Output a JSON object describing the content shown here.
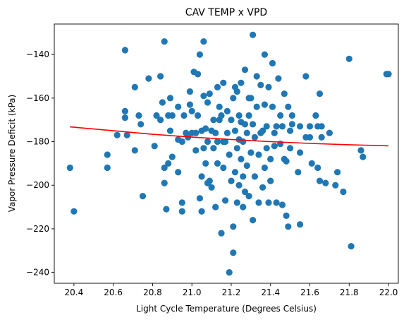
{
  "chart_data": {
    "type": "scatter",
    "title": "CAV TEMP x VPD",
    "xlabel": "Light Cycle Temperature (Degrees Celsius)",
    "ylabel": "Vapor Pressure Deficit (kPa)",
    "xlim": [
      20.3,
      22.05
    ],
    "ylim": [
      -245,
      -126
    ],
    "xticks": [
      "20.4",
      "20.6",
      "20.8",
      "21.0",
      "21.2",
      "21.4",
      "21.6",
      "21.8",
      "22.0"
    ],
    "yticks": [
      "−240",
      "−220",
      "−200",
      "−180",
      "−160",
      "−140"
    ],
    "grid": false,
    "legend": "none",
    "colors": {
      "points": "#1f77b4",
      "trend": "#ff0000"
    },
    "series": [
      {
        "kind": "points",
        "points": [
          [
            20.38,
            -192
          ],
          [
            20.4,
            -212
          ],
          [
            20.57,
            -186
          ],
          [
            20.57,
            -192
          ],
          [
            20.62,
            -177
          ],
          [
            20.66,
            -138
          ],
          [
            20.66,
            -166
          ],
          [
            20.66,
            -169
          ],
          [
            20.67,
            -177
          ],
          [
            20.71,
            -155
          ],
          [
            20.71,
            -184
          ],
          [
            20.73,
            -168
          ],
          [
            20.74,
            -172
          ],
          [
            20.75,
            -205
          ],
          [
            20.78,
            -151
          ],
          [
            20.81,
            -182
          ],
          [
            20.82,
            -168
          ],
          [
            20.84,
            -150
          ],
          [
            20.84,
            -170
          ],
          [
            20.85,
            -162
          ],
          [
            20.86,
            -134
          ],
          [
            20.86,
            -192
          ],
          [
            20.86,
            -199
          ],
          [
            20.87,
            -211
          ],
          [
            20.88,
            -190
          ],
          [
            20.88,
            -168
          ],
          [
            20.89,
            -160
          ],
          [
            20.89,
            -175
          ],
          [
            20.9,
            -187
          ],
          [
            20.9,
            -168
          ],
          [
            20.93,
            -164
          ],
          [
            20.93,
            -179
          ],
          [
            20.93,
            -194
          ],
          [
            20.95,
            -180
          ],
          [
            20.95,
            -208
          ],
          [
            20.95,
            -212
          ],
          [
            20.96,
            -168
          ],
          [
            20.97,
            -176
          ],
          [
            20.98,
            -178
          ],
          [
            20.99,
            -157
          ],
          [
            20.99,
            -163
          ],
          [
            21.0,
            -176
          ],
          [
            21.0,
            -166
          ],
          [
            21.01,
            -148
          ],
          [
            21.02,
            -184
          ],
          [
            21.02,
            -176
          ],
          [
            21.03,
            -168
          ],
          [
            21.03,
            -149
          ],
          [
            21.04,
            -206
          ],
          [
            21.04,
            -140
          ],
          [
            21.05,
            -175
          ],
          [
            21.05,
            -196
          ],
          [
            21.05,
            -212
          ],
          [
            21.06,
            -134
          ],
          [
            21.06,
            -159
          ],
          [
            21.06,
            -183
          ],
          [
            21.07,
            -174
          ],
          [
            21.07,
            -190
          ],
          [
            21.08,
            -162
          ],
          [
            21.08,
            -180
          ],
          [
            21.08,
            -199
          ],
          [
            21.09,
            -158
          ],
          [
            21.09,
            -198
          ],
          [
            21.1,
            -175
          ],
          [
            21.1,
            -201
          ],
          [
            21.11,
            -170
          ],
          [
            21.11,
            -183
          ],
          [
            21.12,
            -176
          ],
          [
            21.12,
            -210
          ],
          [
            21.13,
            -155
          ],
          [
            21.13,
            -180
          ],
          [
            21.13,
            -190
          ],
          [
            21.14,
            -164
          ],
          [
            21.14,
            -170
          ],
          [
            21.15,
            -222
          ],
          [
            21.15,
            -168
          ],
          [
            21.16,
            -180
          ],
          [
            21.16,
            -192
          ],
          [
            21.16,
            -153
          ],
          [
            21.17,
            -180
          ],
          [
            21.17,
            -207
          ],
          [
            21.18,
            -176
          ],
          [
            21.18,
            -166
          ],
          [
            21.19,
            -240
          ],
          [
            21.19,
            -186
          ],
          [
            21.2,
            -198
          ],
          [
            21.2,
            -170
          ],
          [
            21.21,
            -231
          ],
          [
            21.21,
            -219
          ],
          [
            21.21,
            -160
          ],
          [
            21.22,
            -194
          ],
          [
            21.22,
            -175
          ],
          [
            21.22,
            -155
          ],
          [
            21.23,
            -208
          ],
          [
            21.23,
            -183
          ],
          [
            21.23,
            -157
          ],
          [
            21.24,
            -200
          ],
          [
            21.24,
            -179
          ],
          [
            21.24,
            -168
          ],
          [
            21.25,
            -188
          ],
          [
            21.25,
            -171
          ],
          [
            21.25,
            -153
          ],
          [
            21.26,
            -210
          ],
          [
            21.26,
            -196
          ],
          [
            21.26,
            -180
          ],
          [
            21.27,
            -203
          ],
          [
            21.27,
            -172
          ],
          [
            21.27,
            -147
          ],
          [
            21.28,
            -191
          ],
          [
            21.28,
            -176
          ],
          [
            21.29,
            -160
          ],
          [
            21.29,
            -205
          ],
          [
            21.29,
            -168
          ],
          [
            21.3,
            -185
          ],
          [
            21.3,
            -160
          ],
          [
            21.31,
            -131
          ],
          [
            21.31,
            -216
          ],
          [
            21.31,
            -172
          ],
          [
            21.32,
            -196
          ],
          [
            21.32,
            -178
          ],
          [
            21.33,
            -150
          ],
          [
            21.33,
            -164
          ],
          [
            21.34,
            -208
          ],
          [
            21.34,
            -186
          ],
          [
            21.35,
            -176
          ],
          [
            21.35,
            -154
          ],
          [
            21.36,
            -201
          ],
          [
            21.36,
            -175
          ],
          [
            21.37,
            -192
          ],
          [
            21.37,
            -140
          ],
          [
            21.37,
            -163
          ],
          [
            21.38,
            -183
          ],
          [
            21.38,
            -173
          ],
          [
            21.39,
            -208
          ],
          [
            21.39,
            -155
          ],
          [
            21.4,
            -188
          ],
          [
            21.4,
            -198
          ],
          [
            21.41,
            -144
          ],
          [
            21.41,
            -164
          ],
          [
            21.42,
            -176
          ],
          [
            21.42,
            -182
          ],
          [
            21.43,
            -173
          ],
          [
            21.43,
            -208
          ],
          [
            21.44,
            -151
          ],
          [
            21.45,
            -168
          ],
          [
            21.45,
            -181
          ],
          [
            21.46,
            -209
          ],
          [
            21.46,
            -173
          ],
          [
            21.47,
            -158
          ],
          [
            21.47,
            -188
          ],
          [
            21.48,
            -189
          ],
          [
            21.48,
            -214
          ],
          [
            21.49,
            -164
          ],
          [
            21.49,
            -219
          ],
          [
            21.5,
            -175
          ],
          [
            21.5,
            -183
          ],
          [
            21.51,
            -168
          ],
          [
            21.51,
            -172
          ],
          [
            21.54,
            -194
          ],
          [
            21.55,
            -185
          ],
          [
            21.55,
            -218
          ],
          [
            21.55,
            -173
          ],
          [
            21.58,
            -150
          ],
          [
            21.58,
            -178
          ],
          [
            21.6,
            -173
          ],
          [
            21.6,
            -178
          ],
          [
            21.61,
            -190
          ],
          [
            21.63,
            -168
          ],
          [
            21.64,
            -173
          ],
          [
            21.64,
            -192
          ],
          [
            21.65,
            -158
          ],
          [
            21.65,
            -198
          ],
          [
            21.66,
            -178
          ],
          [
            21.66,
            -173
          ],
          [
            21.68,
            -199
          ],
          [
            21.7,
            -176
          ],
          [
            21.73,
            -200
          ],
          [
            21.74,
            -194
          ],
          [
            21.77,
            -203
          ],
          [
            21.8,
            -142
          ],
          [
            21.81,
            -228
          ],
          [
            21.86,
            -184
          ],
          [
            21.87,
            -187
          ],
          [
            21.99,
            -149
          ],
          [
            22.0,
            -149
          ]
        ]
      },
      {
        "kind": "trend-line",
        "x": [
          20.38,
          20.6,
          20.8,
          21.0,
          21.2,
          21.4,
          21.6,
          21.8,
          22.0
        ],
        "y": [
          -173.2,
          -175.0,
          -176.6,
          -177.9,
          -179.0,
          -180.0,
          -180.8,
          -181.4,
          -181.9
        ]
      }
    ]
  }
}
